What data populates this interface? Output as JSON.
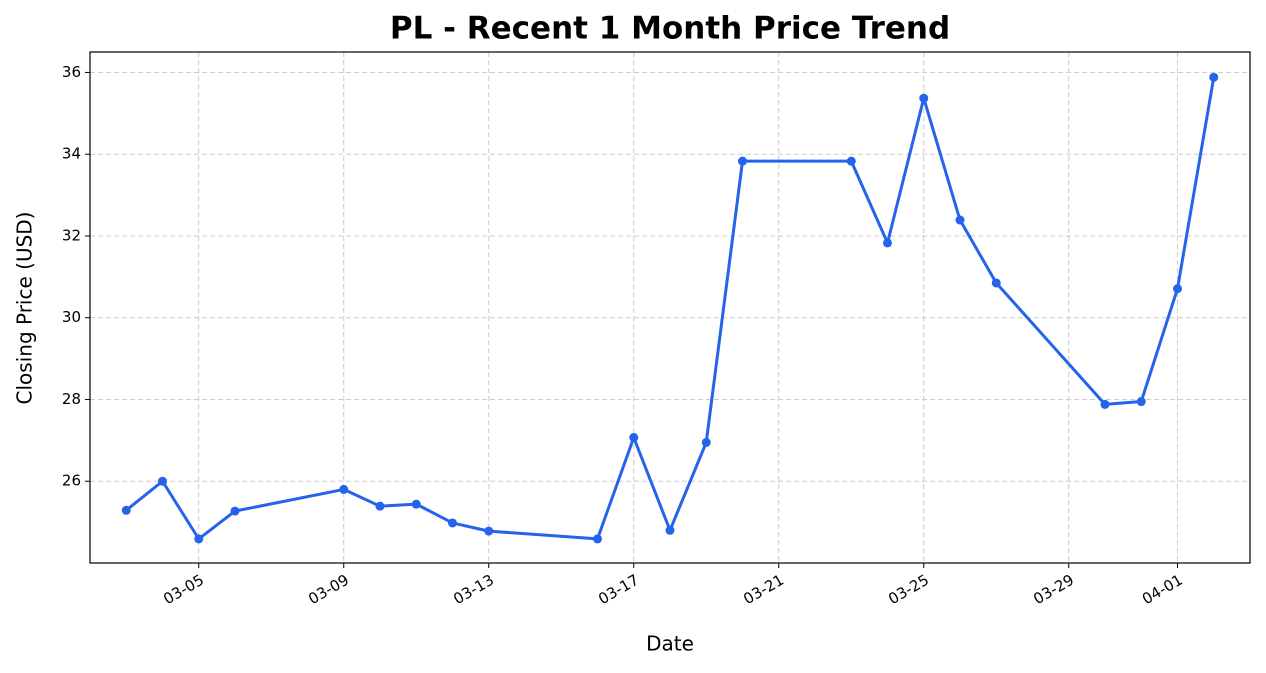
{
  "chart_data": {
    "type": "line",
    "title": "PL - Recent 1 Month Price Trend",
    "x_label": "Date",
    "y_label": "Closing Price (USD)",
    "x": [
      "03-03",
      "03-04",
      "03-05",
      "03-06",
      "03-09",
      "03-10",
      "03-11",
      "03-12",
      "03-13",
      "03-16",
      "03-17",
      "03-18",
      "03-19",
      "03-20",
      "03-23",
      "03-24",
      "03-25",
      "03-26",
      "03-27",
      "03-30",
      "03-31",
      "04-01",
      "04-02"
    ],
    "series": [
      {
        "name": "PL",
        "color": "#2563eb",
        "values": [
          25.29,
          26.0,
          24.59,
          25.27,
          25.8,
          25.39,
          25.44,
          24.98,
          24.78,
          24.59,
          27.07,
          24.8,
          26.95,
          33.83,
          33.83,
          31.83,
          35.37,
          32.39,
          30.85,
          27.88,
          27.95,
          30.71,
          35.88
        ]
      }
    ],
    "xlim": [
      "03-02",
      "04-03"
    ],
    "xticks": [
      "03-05",
      "03-09",
      "03-13",
      "03-17",
      "03-21",
      "03-25",
      "03-29",
      "04-01"
    ],
    "ylim": [
      24.0,
      36.5
    ],
    "yticks": [
      26,
      28,
      30,
      32,
      34,
      36
    ],
    "grid": true
  }
}
